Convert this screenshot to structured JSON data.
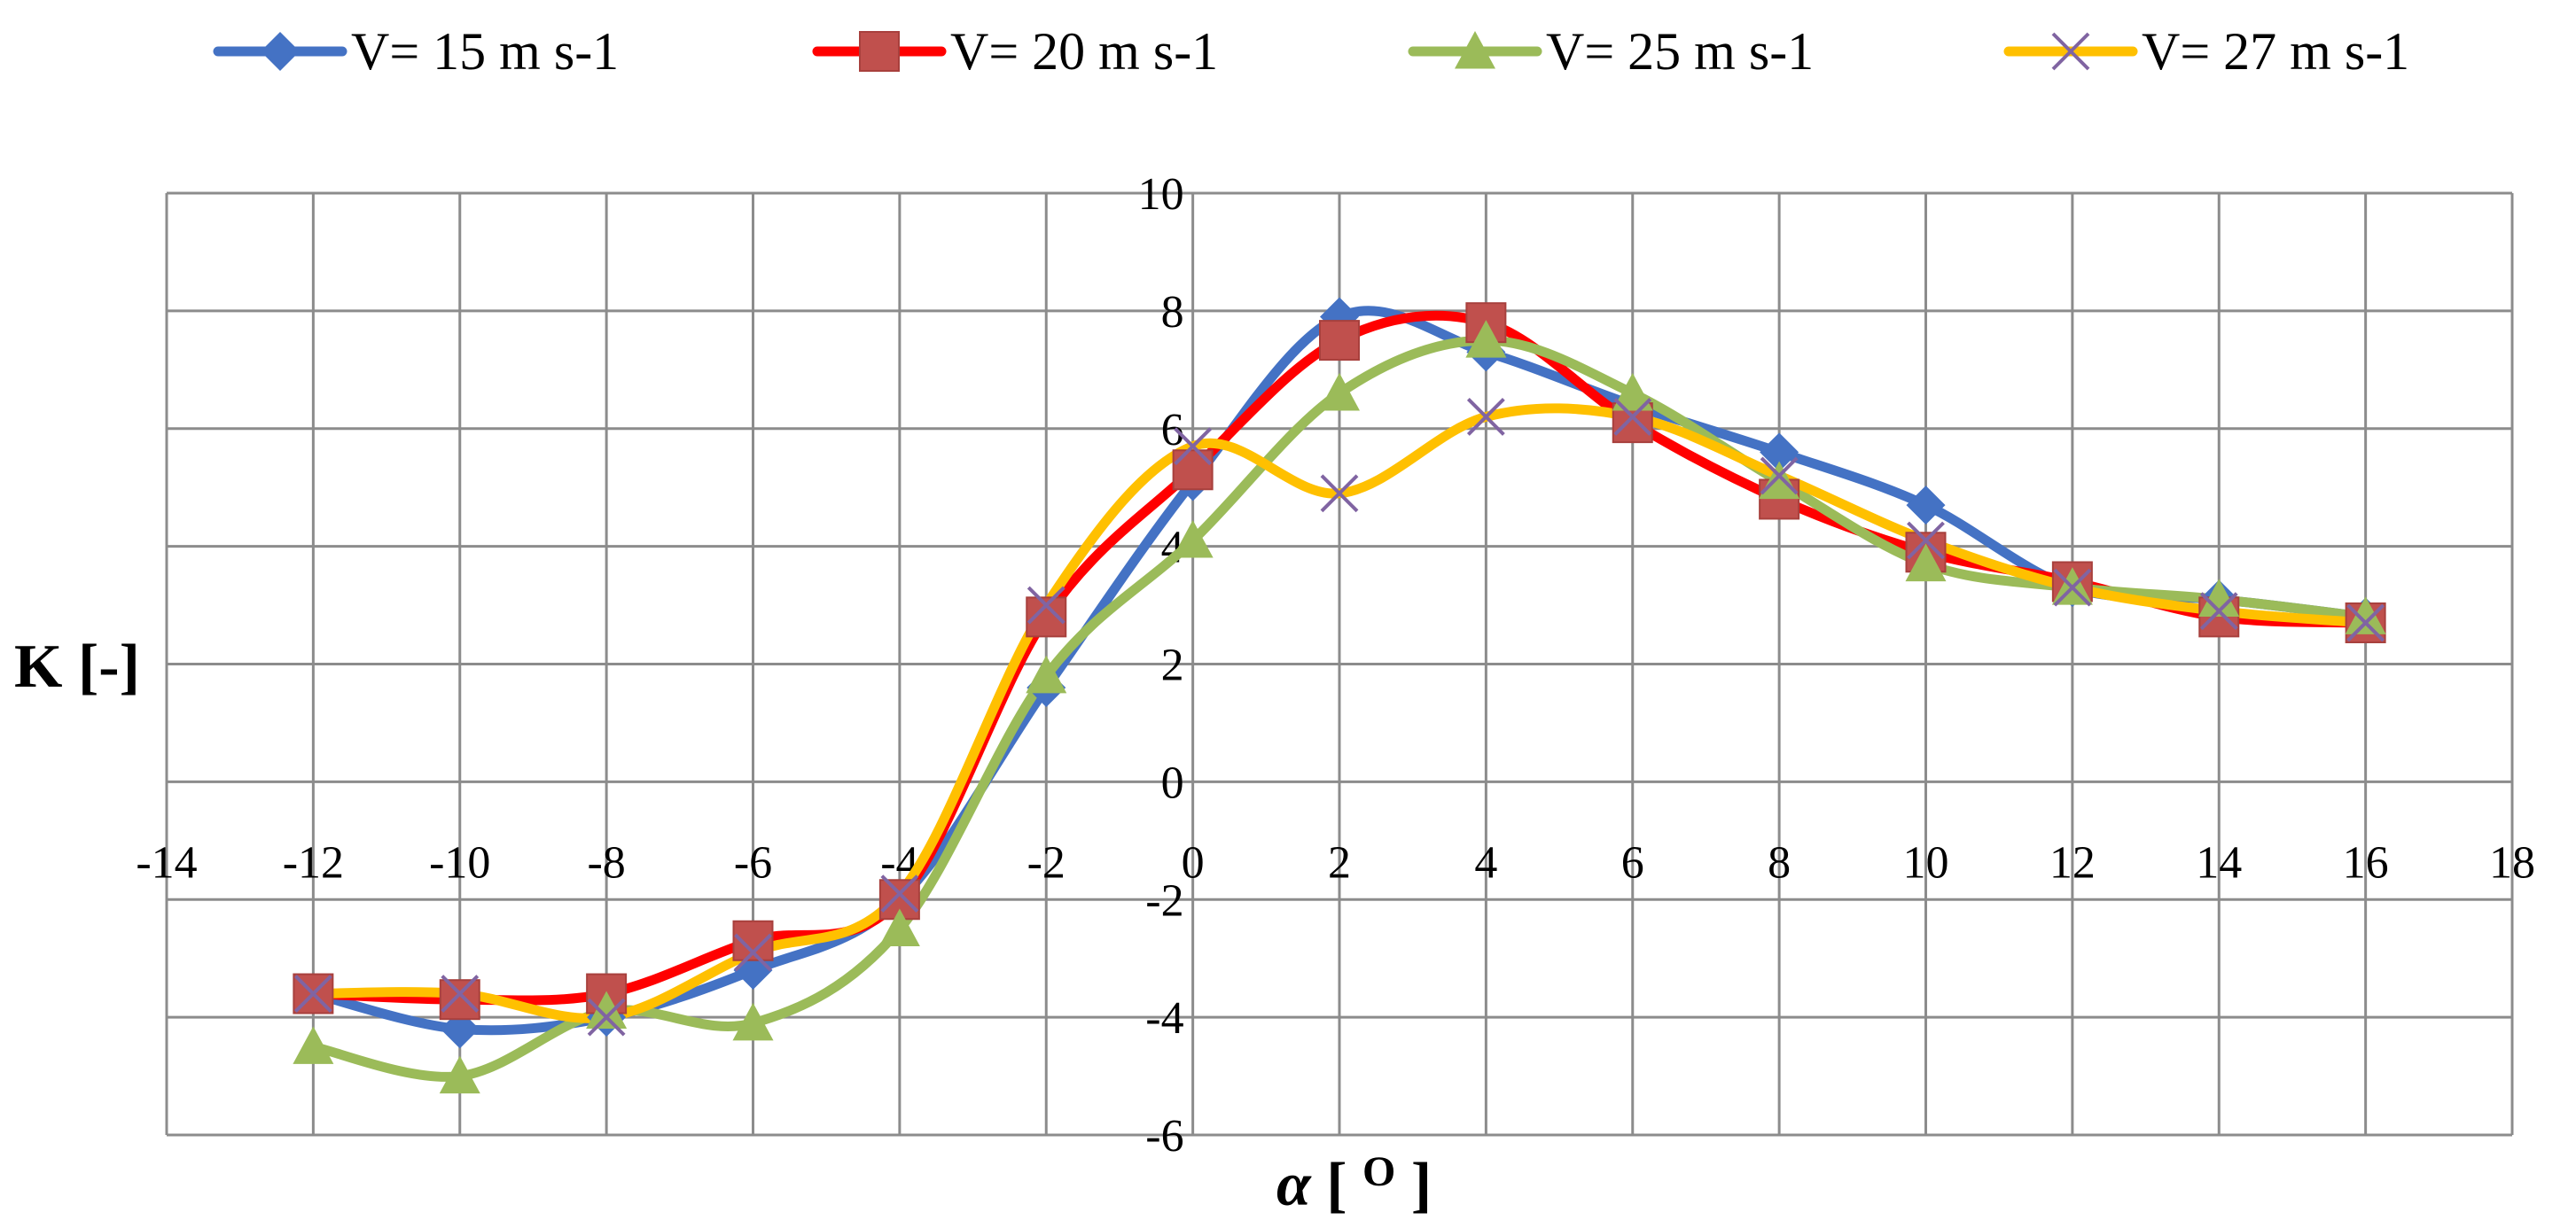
{
  "chart_data": {
    "type": "line",
    "title": "",
    "xlabel": "α [O]",
    "xlabel_symbol": "α",
    "xlabel_unit": "O",
    "ylabel": "K [-]",
    "xlim": [
      -14,
      18
    ],
    "ylim": [
      -6,
      10
    ],
    "x_ticks": [
      "-14",
      "-12",
      "-10",
      "-8",
      "-6",
      "-4",
      "-2",
      "0",
      "2",
      "4",
      "6",
      "8",
      "10",
      "12",
      "14",
      "16",
      "18"
    ],
    "y_ticks": [
      "-6",
      "-4",
      "-2",
      "0",
      "2",
      "4",
      "6",
      "8",
      "10"
    ],
    "grid": true,
    "legend_position": "top",
    "x": [
      -12,
      -10,
      -8,
      -6,
      -4,
      -2,
      0,
      2,
      4,
      6,
      8,
      10,
      12,
      14,
      16
    ],
    "series": [
      {
        "name": "V= 15 m s-1",
        "color": "#4472C4",
        "marker": "diamond",
        "values": [
          -3.6,
          -4.2,
          -4.0,
          -3.2,
          -2.0,
          1.6,
          5.1,
          7.9,
          7.3,
          6.4,
          5.6,
          4.7,
          3.3,
          3.1,
          2.8
        ]
      },
      {
        "name": "V= 20 m s-1",
        "color": "#FF0000",
        "marker_color": "#C0504D",
        "marker": "square",
        "values": [
          -3.6,
          -3.7,
          -3.6,
          -2.7,
          -2.0,
          2.8,
          5.3,
          7.5,
          7.8,
          6.1,
          4.8,
          3.9,
          3.4,
          2.8,
          2.7
        ]
      },
      {
        "name": "V= 25 m s-1",
        "color": "#9BBB59",
        "marker": "triangle",
        "values": [
          -4.5,
          -5.0,
          -3.9,
          -4.1,
          -2.5,
          1.8,
          4.1,
          6.6,
          7.5,
          6.6,
          5.1,
          3.7,
          3.3,
          3.1,
          2.8
        ]
      },
      {
        "name": "V= 27 m s-1",
        "color": "#FFC000",
        "marker_color": "#8064A2",
        "marker": "x",
        "values": [
          -3.6,
          -3.6,
          -4.0,
          -2.9,
          -1.9,
          3.0,
          5.7,
          4.9,
          6.2,
          6.2,
          5.2,
          4.1,
          3.3,
          2.9,
          2.7
        ]
      }
    ]
  }
}
